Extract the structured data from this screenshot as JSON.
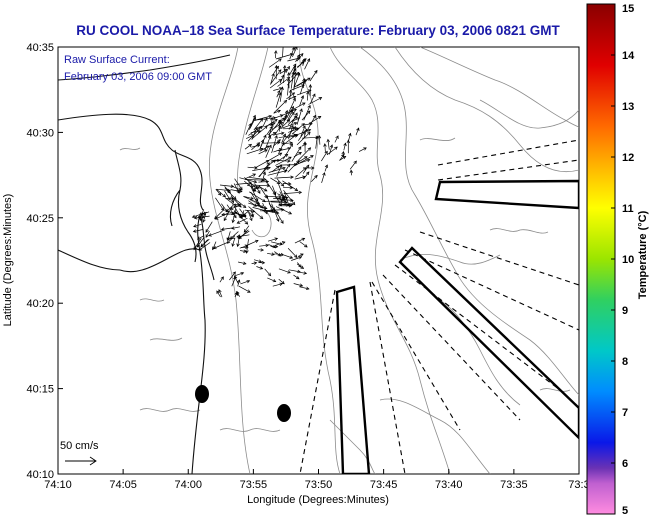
{
  "title": "RU COOL  NOAA–18  Sea Surface Temperature:  February 03, 2006 0821 GMT",
  "current_label": "Raw Surface Current:",
  "current_time": "February 03, 2006 09:00 GMT",
  "scale_label": "50 cm/s",
  "x_axis_label": "Longitude (Degrees:Minutes)",
  "y_axis_label": "Latitude (Degrees:Minutes)",
  "colorbar_label": "Temperature (°C)",
  "x_ticks": [
    "74:10",
    "74:05",
    "74:00",
    "73:55",
    "73:50",
    "73:45",
    "73:40",
    "73:35",
    "73:3"
  ],
  "y_ticks": [
    "40:35",
    "40:30",
    "40:25",
    "40:20",
    "40:15",
    "40:10"
  ],
  "colorbar_ticks": [
    "15",
    "14",
    "13",
    "12",
    "11",
    "10",
    "9",
    "8",
    "7",
    "6",
    "5"
  ],
  "colors": {
    "title": "#1a1aa8",
    "colorbar_stops": [
      "#8a0000",
      "#e00000",
      "#ff6a00",
      "#ffc000",
      "#ffff00",
      "#9be500",
      "#30d060",
      "#00c8c8",
      "#008cff",
      "#0a18e8",
      "#6a32b4",
      "#ff8ce0"
    ]
  }
}
